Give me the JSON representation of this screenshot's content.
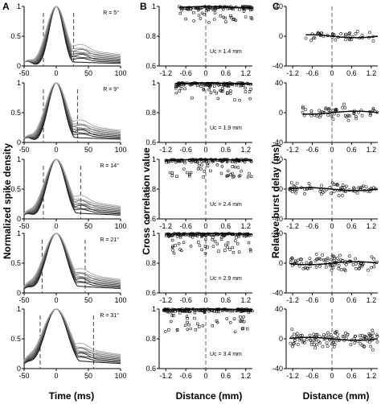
{
  "figure": {
    "panel_letters": [
      "A",
      "B",
      "C"
    ],
    "column_A": {
      "ylabel": "Normalized spike density",
      "xlabel": "Time (ms)",
      "x_ticks": [
        "-50",
        "0",
        "50",
        "100"
      ],
      "y_ticks": [
        "0",
        "0.5",
        "1"
      ]
    },
    "column_B": {
      "ylabel": "Cross correlation value",
      "xlabel": "Distance (mm)",
      "x_ticks": [
        "-1.2",
        "-0.6",
        "0",
        "0.6",
        "1.2"
      ],
      "y_ticks": [
        "0.6",
        "0.8",
        "1"
      ]
    },
    "column_C": {
      "ylabel": "Relative burst delay (ms)",
      "xlabel": "Distance (mm)",
      "x_ticks": [
        "-1.2",
        "-0.6",
        "0",
        "0.6",
        "1.2"
      ],
      "y_ticks": [
        "-40",
        "0",
        "40"
      ]
    }
  },
  "chart_data": [
    {
      "column": "A",
      "type": "line",
      "xlim": [
        -50,
        100
      ],
      "ylim": [
        0,
        1
      ],
      "rows": [
        {
          "label": "R =  5°",
          "vline_left": -20,
          "vline_right": 27
        },
        {
          "label": "R =  9°",
          "vline_left": -20,
          "vline_right": 33
        },
        {
          "label": "R = 14°",
          "vline_left": -20,
          "vline_right": 38
        },
        {
          "label": "R = 21°",
          "vline_left": -22,
          "vline_right": 45
        },
        {
          "label": "R = 31°",
          "vline_left": -25,
          "vline_right": 58
        }
      ]
    },
    {
      "column": "B",
      "type": "scatter",
      "xlim": [
        -1.4,
        1.4
      ],
      "ylim": [
        0.6,
        1.0
      ],
      "rows": [
        {
          "label": "Uc = 1.4 mm",
          "uc": 1.4,
          "x_range": [
            -0.8,
            1.4
          ]
        },
        {
          "label": "Uc = 1.9 mm",
          "uc": 1.9,
          "x_range": [
            -0.9,
            1.4
          ]
        },
        {
          "label": "Uc = 2.4 mm",
          "uc": 2.4,
          "x_range": [
            -1.2,
            1.4
          ]
        },
        {
          "label": "Uc = 2.9 mm",
          "uc": 2.9,
          "x_range": [
            -1.2,
            1.4
          ]
        },
        {
          "label": "Uc = 3.4 mm",
          "uc": 3.4,
          "x_range": [
            -1.3,
            1.4
          ]
        }
      ]
    },
    {
      "column": "C",
      "type": "scatter",
      "xlim": [
        -1.4,
        1.4
      ],
      "ylim": [
        -40,
        40
      ],
      "rows": [
        {
          "x_range": [
            -0.8,
            1.4
          ],
          "spread": 10
        },
        {
          "x_range": [
            -0.9,
            1.4
          ],
          "spread": 14
        },
        {
          "x_range": [
            -1.3,
            1.4
          ],
          "spread": 12
        },
        {
          "x_range": [
            -1.3,
            1.4
          ],
          "spread": 14
        },
        {
          "x_range": [
            -1.3,
            1.4
          ],
          "spread": 16
        }
      ]
    }
  ]
}
